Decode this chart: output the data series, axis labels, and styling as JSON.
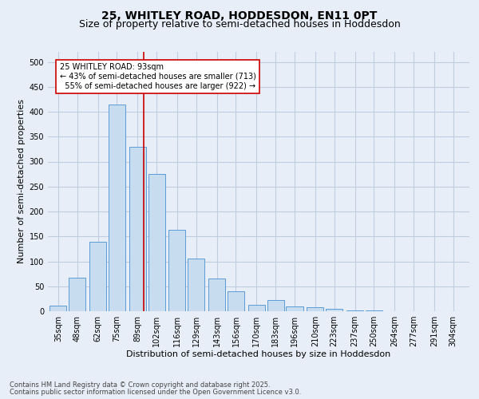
{
  "title": "25, WHITLEY ROAD, HODDESDON, EN11 0PT",
  "subtitle": "Size of property relative to semi-detached houses in Hoddesdon",
  "xlabel": "Distribution of semi-detached houses by size in Hoddesdon",
  "ylabel": "Number of semi-detached properties",
  "footnote1": "Contains HM Land Registry data © Crown copyright and database right 2025.",
  "footnote2": "Contains public sector information licensed under the Open Government Licence v3.0.",
  "bin_labels": [
    "35sqm",
    "48sqm",
    "62sqm",
    "75sqm",
    "89sqm",
    "102sqm",
    "116sqm",
    "129sqm",
    "143sqm",
    "156sqm",
    "170sqm",
    "183sqm",
    "196sqm",
    "210sqm",
    "223sqm",
    "237sqm",
    "250sqm",
    "264sqm",
    "277sqm",
    "291sqm",
    "304sqm"
  ],
  "bin_centers": [
    35,
    48,
    62,
    75,
    89,
    102,
    116,
    129,
    143,
    156,
    170,
    183,
    196,
    210,
    223,
    237,
    250,
    264,
    277,
    291,
    304
  ],
  "values": [
    12,
    67,
    140,
    415,
    330,
    275,
    163,
    105,
    65,
    40,
    13,
    22,
    10,
    8,
    5,
    2,
    1,
    0,
    0,
    0,
    0
  ],
  "bar_color": "#c8dcf0",
  "bar_edge_color": "#5b9bd5",
  "red_line_x": 93,
  "annotation_line1": "25 WHITLEY ROAD: 93sqm",
  "annotation_line2": "← 43% of semi-detached houses are smaller (713)",
  "annotation_line3": "  55% of semi-detached houses are larger (922) →",
  "annotation_box_color": "#ffffff",
  "annotation_box_edge": "#cc0000",
  "ylim": [
    0,
    520
  ],
  "yticks": [
    0,
    50,
    100,
    150,
    200,
    250,
    300,
    350,
    400,
    450,
    500
  ],
  "grid_color": "#c0cce0",
  "background_color": "#e8eef8",
  "title_fontsize": 10,
  "subtitle_fontsize": 9,
  "tick_fontsize": 7,
  "axis_label_fontsize": 8,
  "annotation_fontsize": 7,
  "footnote_fontsize": 6
}
